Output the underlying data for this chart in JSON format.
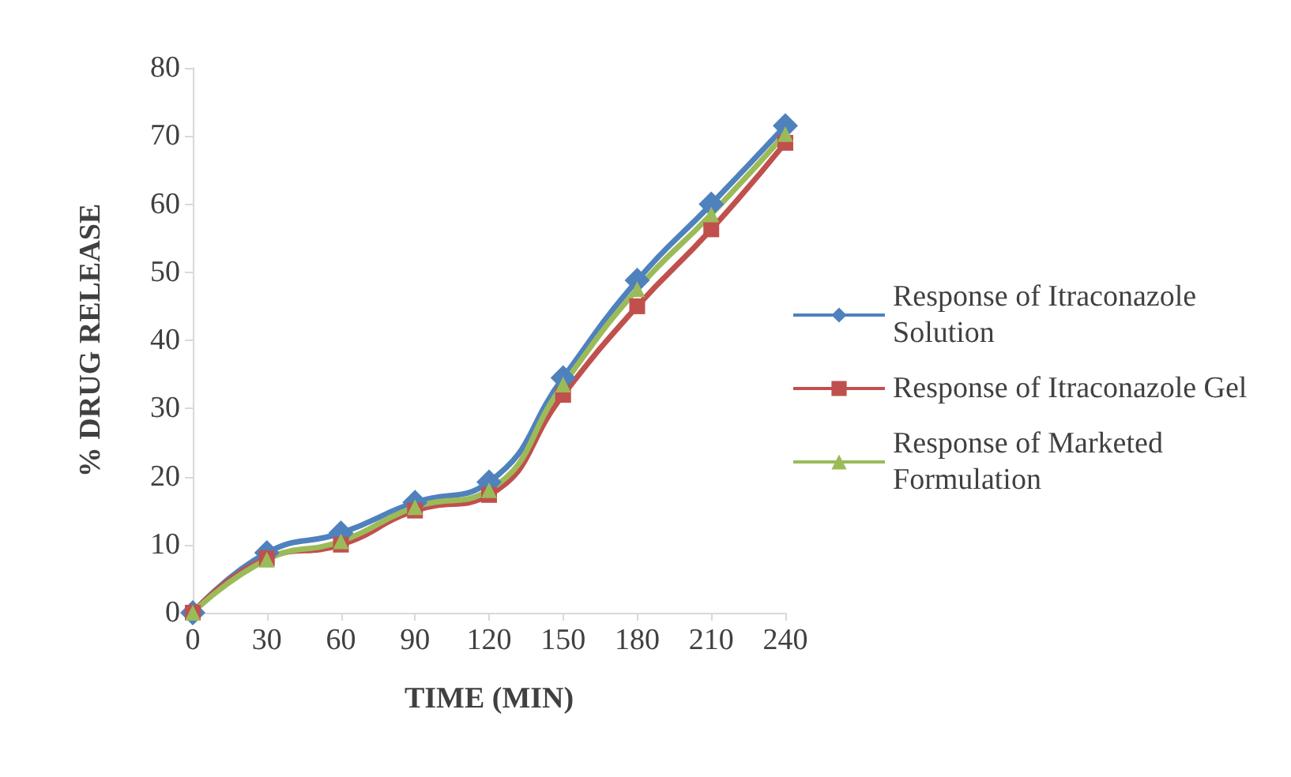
{
  "chart_data": {
    "type": "line",
    "xlabel": "TIME (MIN)",
    "ylabel": "% DRUG RELEASE",
    "categories": [
      "0",
      "30",
      "60",
      "90",
      "120",
      "150",
      "180",
      "210",
      "240"
    ],
    "ylim": [
      0,
      80
    ],
    "yticks": [
      0,
      10,
      20,
      30,
      40,
      50,
      60,
      70,
      80
    ],
    "grid": false,
    "legend": "right",
    "series": [
      {
        "name": "Response of Itraconazole Solution",
        "color": "#4f81bd",
        "marker": "diamond",
        "values": [
          0,
          8.8,
          11.7,
          16.2,
          19.2,
          34.5,
          48.8,
          60,
          71.5
        ]
      },
      {
        "name": "Response of Itraconazole Gel",
        "color": "#c0504d",
        "marker": "square",
        "values": [
          0,
          8,
          10,
          15,
          17.3,
          32,
          45,
          56.3,
          69
        ]
      },
      {
        "name": "Response of Marketed Formulation",
        "color": "#9bbb59",
        "marker": "triangle",
        "values": [
          0,
          7.8,
          10.5,
          15.5,
          18,
          33.5,
          47.5,
          58.5,
          70.3
        ]
      }
    ]
  }
}
